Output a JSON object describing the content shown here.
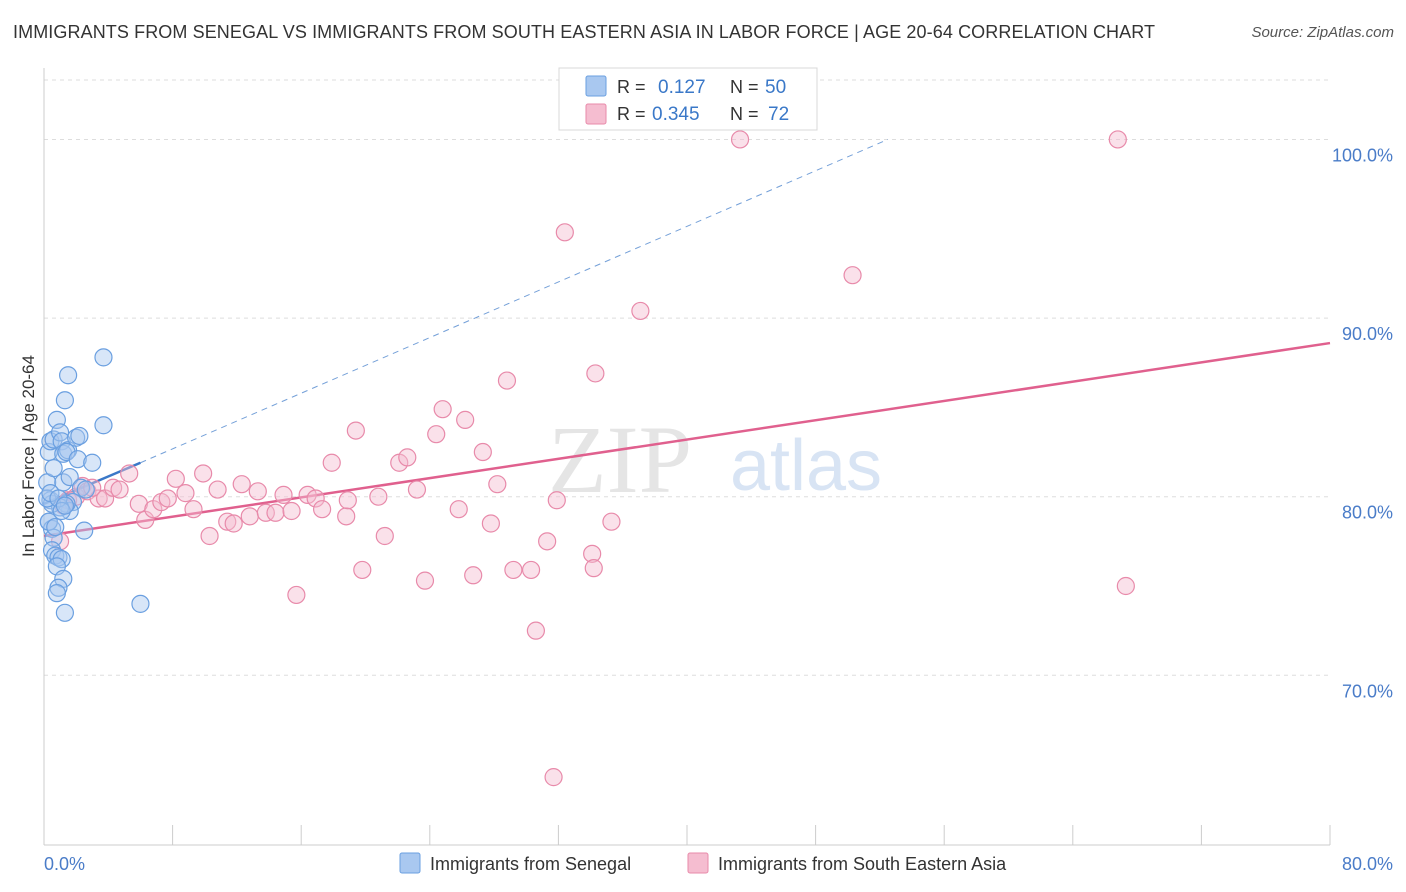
{
  "title": "IMMIGRANTS FROM SENEGAL VS IMMIGRANTS FROM SOUTH EASTERN ASIA IN LABOR FORCE | AGE 20-64 CORRELATION CHART",
  "source": "Source: ZipAtlas.com",
  "watermark": {
    "zip": "ZIP",
    "atlas": "atlas"
  },
  "colors": {
    "blue": "#6a9fe0",
    "blue_fill": "#a9c8f0",
    "blue_line": "#3a78c8",
    "pink": "#e88aaa",
    "pink_fill": "#f5bdd0",
    "pink_line": "#e0608e",
    "tick_label": "#4a7cc8",
    "grid": "#dddddd"
  },
  "chart_data": {
    "type": "scatter",
    "xlabel": "",
    "ylabel": "In Labor Force | Age 20-64",
    "xlim": [
      0,
      80
    ],
    "ylim": [
      60.5,
      104
    ],
    "x_tick_labels": [
      "0.0%",
      "80.0%"
    ],
    "y_ticks": [
      70,
      80,
      90,
      100
    ],
    "y_tick_labels": [
      "70.0%",
      "80.0%",
      "90.0%",
      "100.0%"
    ],
    "legend": [
      {
        "r_label": "R =",
        "r_value": "0.127",
        "n_label": "N =",
        "n_value": "50"
      },
      {
        "r_label": "R =",
        "r_value": "0.345",
        "n_label": "N =",
        "n_value": "72"
      }
    ],
    "series": [
      {
        "name": "Immigrants from Senegal",
        "color": "blue",
        "trend": {
          "solid": [
            [
              0,
              79.6
            ],
            [
              6,
              81.9
            ]
          ],
          "dashed": [
            [
              6,
              81.9
            ],
            [
              52.5,
              100
            ]
          ]
        },
        "points": [
          [
            0.2,
            80.8
          ],
          [
            0.4,
            79.8
          ],
          [
            0.3,
            78.6
          ],
          [
            0.5,
            78.2
          ],
          [
            0.6,
            77.7
          ],
          [
            0.5,
            77
          ],
          [
            0.7,
            76.7
          ],
          [
            0.9,
            76.6
          ],
          [
            1.1,
            76.5
          ],
          [
            0.8,
            76.1
          ],
          [
            1.2,
            75.4
          ],
          [
            0.9,
            74.9
          ],
          [
            0.8,
            74.6
          ],
          [
            1.3,
            73.5
          ],
          [
            0.3,
            82.5
          ],
          [
            0.4,
            83.1
          ],
          [
            0.6,
            83.2
          ],
          [
            0.8,
            84.3
          ],
          [
            1,
            83.6
          ],
          [
            1.1,
            83.1
          ],
          [
            1.2,
            82.4
          ],
          [
            1.5,
            82.6
          ],
          [
            1.4,
            82.5
          ],
          [
            1.3,
            85.4
          ],
          [
            1.5,
            86.8
          ],
          [
            0.6,
            81.6
          ],
          [
            1.2,
            80.8
          ],
          [
            1.6,
            81.1
          ],
          [
            2.1,
            82.1
          ],
          [
            2,
            83.3
          ],
          [
            2.2,
            83.4
          ],
          [
            2.3,
            80.5
          ],
          [
            2.6,
            80.4
          ],
          [
            3,
            81.9
          ],
          [
            1.8,
            79.7
          ],
          [
            1.6,
            79.2
          ],
          [
            1.4,
            79.6
          ],
          [
            1,
            79.4
          ],
          [
            0.5,
            79.6
          ],
          [
            0.2,
            79.9
          ],
          [
            0.3,
            78.6
          ],
          [
            0.7,
            78.3
          ],
          [
            2.5,
            78.1
          ],
          [
            3.7,
            87.8
          ],
          [
            3.7,
            84
          ],
          [
            6,
            74
          ],
          [
            0.4,
            80.2
          ],
          [
            0.9,
            79.9
          ],
          [
            1.1,
            79.2
          ],
          [
            1.3,
            79.5
          ]
        ]
      },
      {
        "name": "Immigrants from South Eastern Asia",
        "color": "pink",
        "trend": {
          "solid": [
            [
              0,
              77.8
            ],
            [
              80,
              88.6
            ]
          ]
        },
        "points": [
          [
            1,
            77.5
          ],
          [
            1.2,
            79.5
          ],
          [
            1.5,
            79.8
          ],
          [
            2,
            80
          ],
          [
            2.4,
            80.6
          ],
          [
            2.7,
            80.3
          ],
          [
            3.4,
            79.9
          ],
          [
            3.8,
            79.9
          ],
          [
            4.3,
            80.5
          ],
          [
            4.7,
            80.4
          ],
          [
            5.3,
            81.3
          ],
          [
            5.9,
            79.6
          ],
          [
            6.3,
            78.7
          ],
          [
            6.8,
            79.3
          ],
          [
            7.3,
            79.7
          ],
          [
            7.7,
            79.9
          ],
          [
            8.2,
            81
          ],
          [
            8.8,
            80.2
          ],
          [
            9.3,
            79.3
          ],
          [
            9.9,
            81.3
          ],
          [
            10.3,
            77.8
          ],
          [
            10.8,
            80.4
          ],
          [
            11.4,
            78.6
          ],
          [
            11.8,
            78.5
          ],
          [
            12.3,
            80.7
          ],
          [
            12.8,
            78.9
          ],
          [
            13.3,
            80.3
          ],
          [
            13.8,
            79.1
          ],
          [
            14.4,
            79.1
          ],
          [
            14.9,
            80.1
          ],
          [
            15.4,
            79.2
          ],
          [
            15.7,
            74.5
          ],
          [
            16.4,
            80.1
          ],
          [
            16.9,
            79.9
          ],
          [
            17.3,
            79.3
          ],
          [
            17.9,
            81.9
          ],
          [
            18.8,
            78.9
          ],
          [
            18.9,
            79.8
          ],
          [
            19.4,
            83.7
          ],
          [
            19.8,
            75.9
          ],
          [
            20.8,
            80
          ],
          [
            21.2,
            77.8
          ],
          [
            22.1,
            81.9
          ],
          [
            22.6,
            82.2
          ],
          [
            23.2,
            80.4
          ],
          [
            23.7,
            75.3
          ],
          [
            24.4,
            83.5
          ],
          [
            24.8,
            84.9
          ],
          [
            25.8,
            79.3
          ],
          [
            26.2,
            84.3
          ],
          [
            26.7,
            75.6
          ],
          [
            27.3,
            82.5
          ],
          [
            27.8,
            78.5
          ],
          [
            28.2,
            80.7
          ],
          [
            28.8,
            86.5
          ],
          [
            29.2,
            75.9
          ],
          [
            30.3,
            75.9
          ],
          [
            30.6,
            72.5
          ],
          [
            31.3,
            77.5
          ],
          [
            31.7,
            64.3
          ],
          [
            31.9,
            79.8
          ],
          [
            32.4,
            94.8
          ],
          [
            34.1,
            76.8
          ],
          [
            34.2,
            76
          ],
          [
            34.3,
            86.9
          ],
          [
            35.3,
            78.6
          ],
          [
            37.1,
            90.4
          ],
          [
            43.3,
            100
          ],
          [
            50.3,
            92.4
          ],
          [
            66.8,
            100
          ],
          [
            67.3,
            75
          ],
          [
            3,
            80.5
          ]
        ]
      }
    ]
  }
}
